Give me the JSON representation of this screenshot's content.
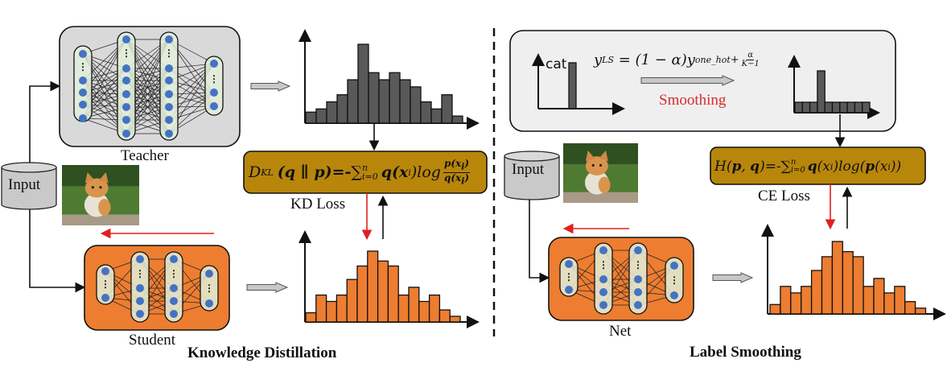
{
  "colors": {
    "student_orange": "#ed7d31",
    "teacher_gray": "#d9d9d9",
    "teacher_bars": "#595959",
    "loss_gold": "#b8860b",
    "node_blue": "#4472c4",
    "capsule_green": "#e2efd9",
    "feedback_red": "#e02020",
    "smoothing_red": "#d92b2b"
  },
  "knowledge_distillation": {
    "title": "Knowledge Distillation",
    "teacher_label": "Teacher",
    "student_label": "Student",
    "input_label": "Input",
    "loss_label": "KD Loss",
    "formula": {
      "lhs": "D",
      "lhs_sub": "KL",
      "args": "(q ∥ p)=-",
      "sum": "∑",
      "sum_sup": "n",
      "sum_sub": "i=0",
      "term": "q(x",
      "term_sub": "i",
      "term_end": ")log",
      "num": "p(x",
      "num_sub": "i",
      "num_end": ")",
      "den": "q(x",
      "den_sub": "i",
      "den_end": ")"
    },
    "teacher_histogram": [
      1.4,
      1.8,
      2.7,
      3.6,
      5.5,
      10,
      6.4,
      5.5,
      6.4,
      5.5,
      4.6,
      2.7,
      1.8,
      3.6,
      0.9
    ],
    "student_histogram": [
      1.3,
      3.8,
      2.9,
      3.8,
      6,
      7.9,
      10,
      8.6,
      7.9,
      3.8,
      4.9,
      2.9,
      3.8,
      1.7,
      0.8
    ]
  },
  "label_smoothing": {
    "title": "Label Smoothing",
    "net_label": "Net",
    "input_label": "Input",
    "cat_label": "cat",
    "smoothing_label": "Smoothing",
    "loss_label": "CE Loss",
    "ls_formula": {
      "y": "y",
      "y_sub": "LS",
      "mid": " = (1 − α)y",
      "mid_sub": "one_hot",
      "plus": "+",
      "frac_num": "α",
      "frac_den": "K−1"
    },
    "ce_formula": {
      "lhs": "H(",
      "p": "p",
      "comma": ", ",
      "q": "q",
      "rhs": ")=-",
      "sum": "∑",
      "sum_sup": "n",
      "sum_sub": "i=0",
      "term": "q",
      "term2": "(x",
      "term_sub": "i",
      "term_end": ")log(",
      "p2": "p",
      "tail": "(x",
      "tail_sub": "i",
      "tail_end": "))"
    },
    "one_hot_histogram": [
      1
    ],
    "smoothed_histogram": [
      0.25,
      0.25,
      0.25,
      1,
      0.25,
      0.25,
      0.25,
      0.25,
      0.25,
      0.25
    ],
    "net_histogram": [
      1.3,
      3.8,
      2.9,
      3.8,
      6,
      7.9,
      10,
      8.6,
      7.9,
      3.8,
      4.9,
      2.9,
      3.8,
      1.7,
      0.8
    ]
  }
}
